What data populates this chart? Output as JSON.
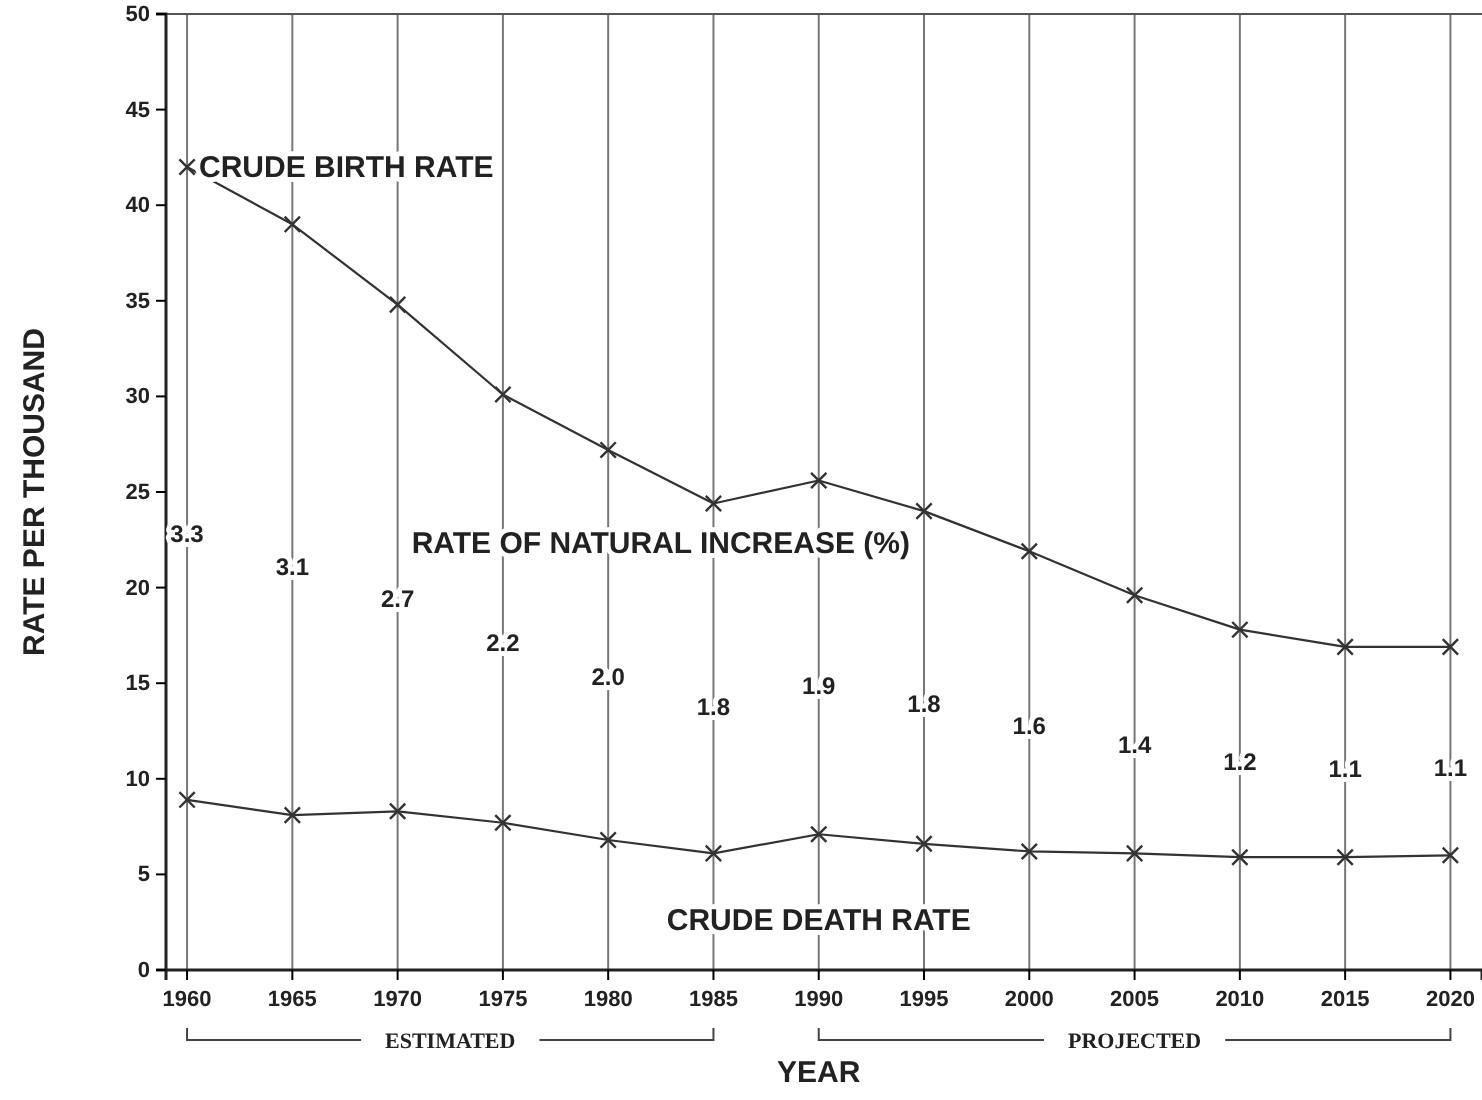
{
  "chart_data": {
    "type": "line",
    "xlabel": "YEAR",
    "ylabel": "RATE PER THOUSAND",
    "x": [
      1960,
      1965,
      1970,
      1975,
      1980,
      1985,
      1990,
      1995,
      2000,
      2005,
      2010,
      2015,
      2020
    ],
    "series": [
      {
        "name": "CRUDE BIRTH RATE",
        "color": "#333333",
        "values": [
          42,
          39,
          34.8,
          30.1,
          27.2,
          24.4,
          25.6,
          24,
          21.9,
          19.6,
          17.8,
          16.9,
          16.9
        ]
      },
      {
        "name": "CRUDE DEATH RATE",
        "color": "#333333",
        "values": [
          8.9,
          8.1,
          8.3,
          7.7,
          6.8,
          6.1,
          7.1,
          6.6,
          6.2,
          6.1,
          5.9,
          5.9,
          6
        ]
      }
    ],
    "annotations": [
      "RATE OF NATURAL INCREASE (%)",
      "3.3",
      "3.1",
      "2.7",
      "2.2",
      "2.0",
      "1.8",
      "1.9",
      "1.8",
      "1.6",
      "1.4",
      "1.2",
      "1.1",
      "1.1",
      "ESTIMATED",
      "PROJECTED"
    ],
    "xlim": [
      1959,
      2021.5
    ],
    "ylim": [
      0,
      50
    ],
    "xticks": [
      1960,
      1965,
      1970,
      1975,
      1980,
      1985,
      1990,
      1995,
      2000,
      2005,
      2010,
      2015,
      2020
    ],
    "yticks": [
      0,
      5,
      10,
      15,
      20,
      25,
      30,
      35,
      40,
      45,
      50
    ],
    "grid": "x",
    "marker": "cross",
    "line_style": "solid"
  }
}
